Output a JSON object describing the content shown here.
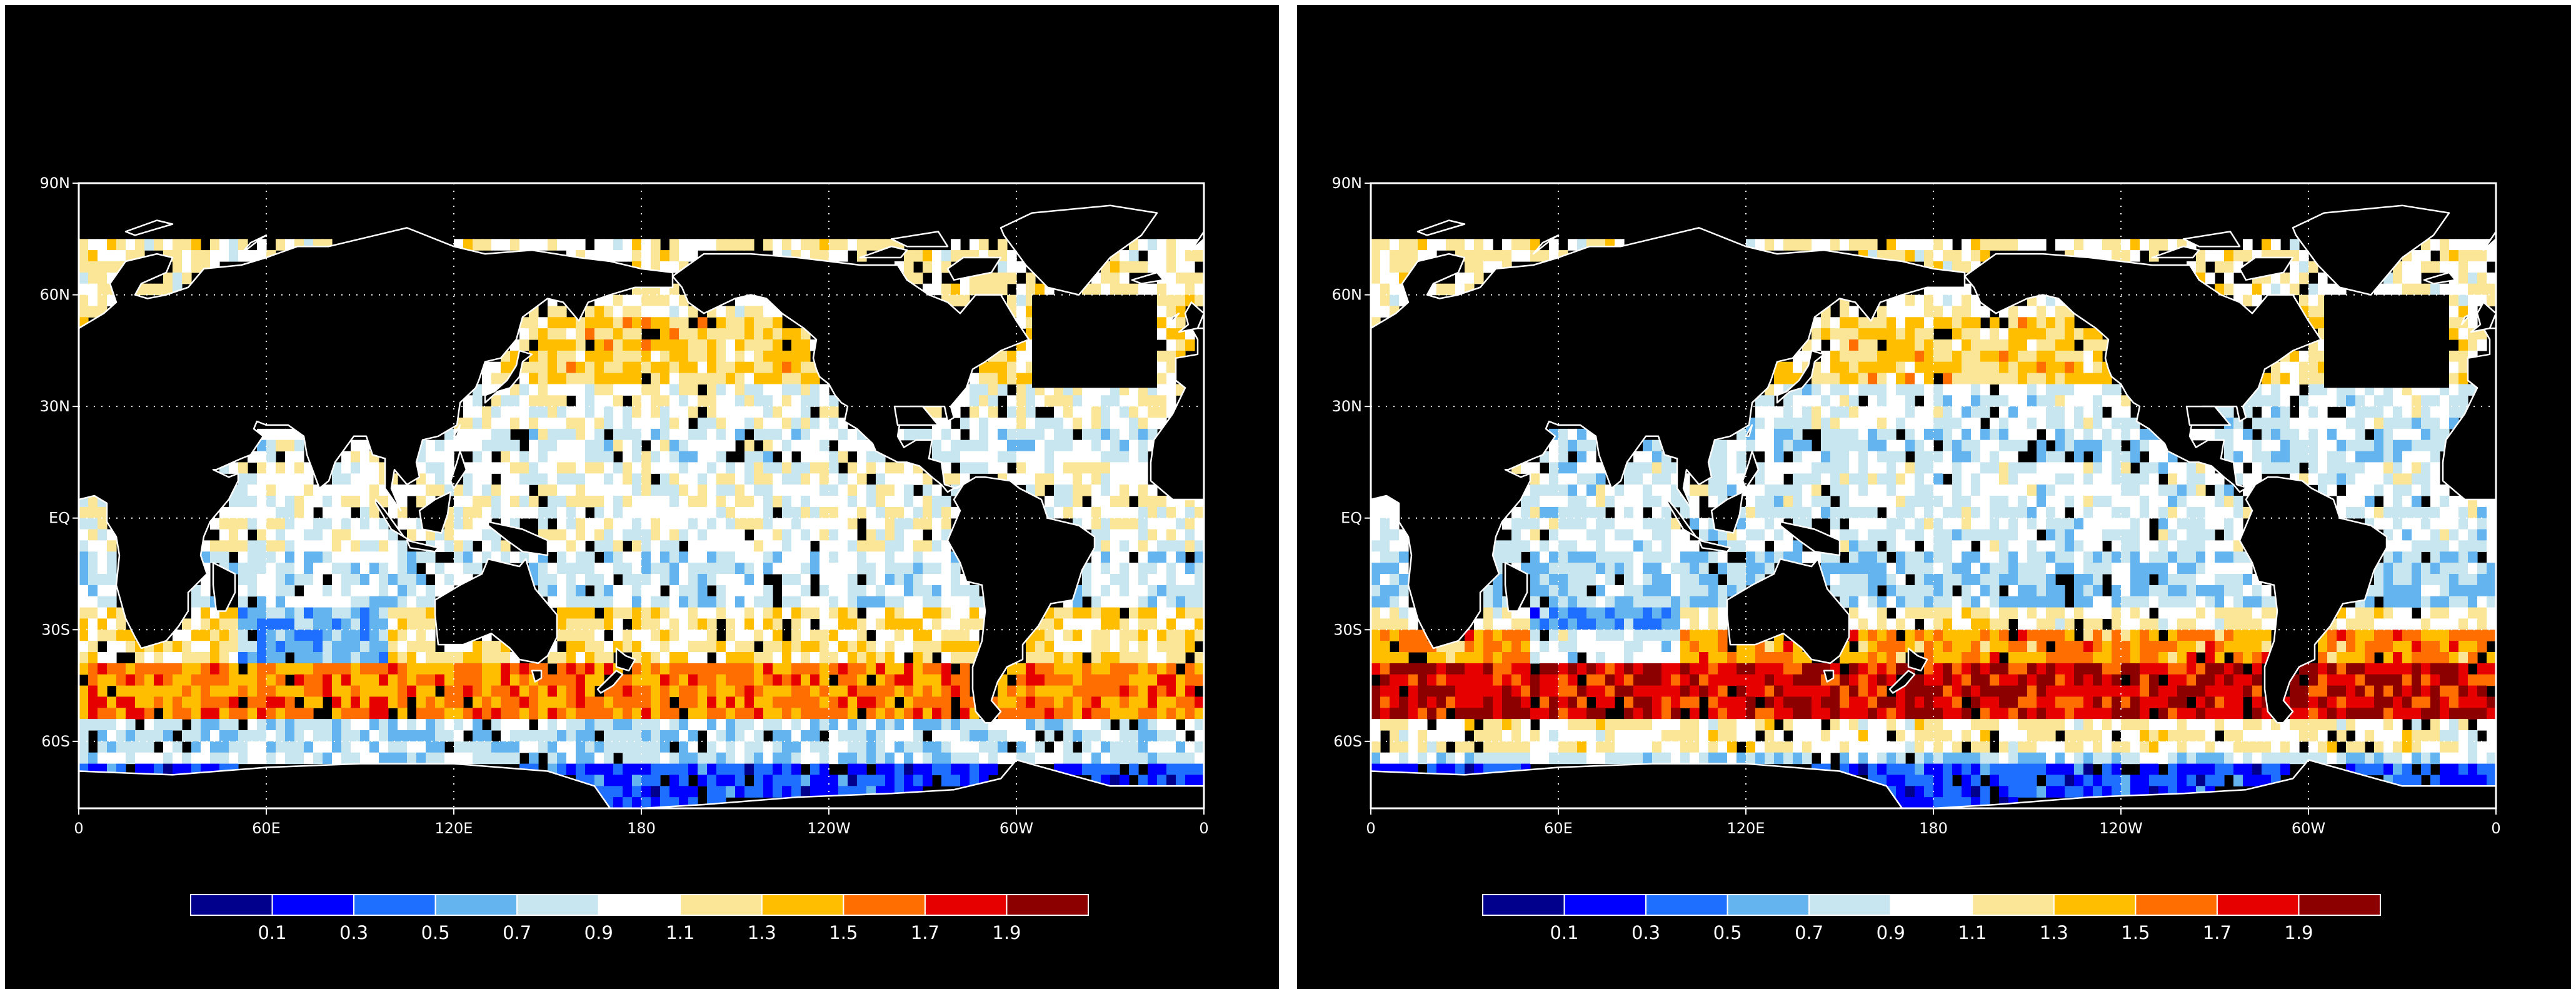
{
  "panels": [
    {
      "lat_labels": [
        "90N",
        "60N",
        "30N",
        "EQ",
        "30S",
        "60S"
      ],
      "lon_labels": [
        "0",
        "60E",
        "120E",
        "180",
        "120W",
        "60W",
        "0"
      ],
      "colorbar_colors": [
        "#00008c",
        "#0000ff",
        "#1e6eff",
        "#64b4ef",
        "#c8e6f0",
        "#ffffff",
        "#fae696",
        "#ffbe00",
        "#ff6e00",
        "#e60000",
        "#8c0000"
      ],
      "colorbar_labels": [
        "0.1",
        "0.3",
        "0.5",
        "0.7",
        "0.9",
        "1.1",
        "1.3",
        "1.5",
        "1.7",
        "1.9"
      ]
    },
    {
      "lat_labels": [
        "90N",
        "60N",
        "30N",
        "EQ",
        "30S",
        "60S"
      ],
      "lon_labels": [
        "0",
        "60E",
        "120E",
        "180",
        "120W",
        "60W",
        "0"
      ],
      "colorbar_colors": [
        "#00008c",
        "#0000ff",
        "#1e6eff",
        "#64b4ef",
        "#c8e6f0",
        "#ffffff",
        "#fae696",
        "#ffbe00",
        "#ff6e00",
        "#e60000",
        "#8c0000"
      ],
      "colorbar_labels": [
        "0.1",
        "0.3",
        "0.5",
        "0.7",
        "0.9",
        "1.1",
        "1.3",
        "1.5",
        "1.7",
        "1.9"
      ]
    }
  ]
}
